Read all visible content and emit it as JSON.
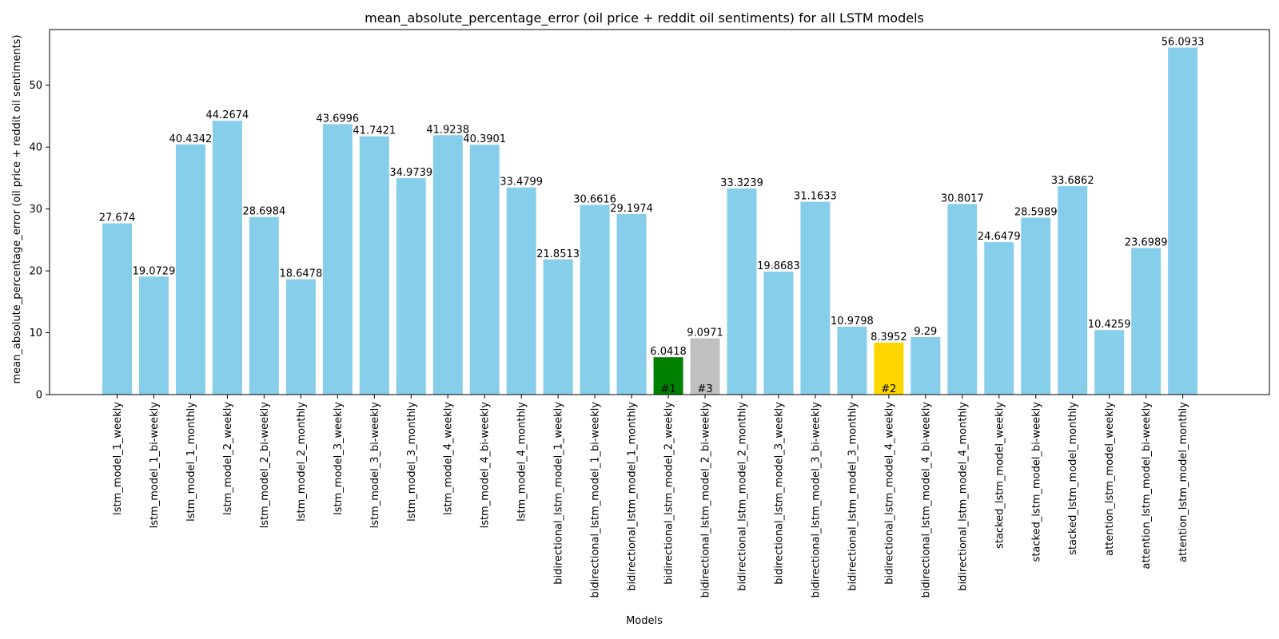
{
  "chart_data": {
    "type": "bar",
    "title": "mean_absolute_percentage_error (oil price + reddit oil sentiments) for all LSTM models",
    "xlabel": "Models",
    "ylabel": "mean_absolute_percentage_error (oil price + reddit oil sentiments)",
    "ylim": [
      0,
      59
    ],
    "yticks": [
      0,
      10,
      20,
      30,
      40,
      50
    ],
    "grid": false,
    "default_color": "#87CEEB",
    "categories": [
      "lstm_model_1_weekly",
      "lstm_model_1_bi-weekly",
      "lstm_model_1_monthly",
      "lstm_model_2_weekly",
      "lstm_model_2_bi-weekly",
      "lstm_model_2_monthly",
      "lstm_model_3_weekly",
      "lstm_model_3_bi-weekly",
      "lstm_model_3_monthly",
      "lstm_model_4_weekly",
      "lstm_model_4_bi-weekly",
      "lstm_model_4_monthly",
      "bidirectional_lstm_model_1_weekly",
      "bidirectional_lstm_model_1_bi-weekly",
      "bidirectional_lstm_model_1_monthly",
      "bidirectional_lstm_model_2_weekly",
      "bidirectional_lstm_model_2_bi-weekly",
      "bidirectional_lstm_model_2_monthly",
      "bidirectional_lstm_model_3_weekly",
      "bidirectional_lstm_model_3_bi-weekly",
      "bidirectional_lstm_model_3_monthly",
      "bidirectional_lstm_model_4_weekly",
      "bidirectional_lstm_model_4_bi-weekly",
      "bidirectional_lstm_model_4_monthly",
      "stacked_lstm_model_weekly",
      "stacked_lstm_model_bi-weekly",
      "stacked_lstm_model_monthly",
      "attention_lstm_model_weekly",
      "attention_lstm_model_bi-weekly",
      "attention_lstm_model_monthly"
    ],
    "values": [
      27.674,
      19.0729,
      40.4342,
      44.2674,
      28.6984,
      18.6478,
      43.6996,
      41.7421,
      34.9739,
      41.9238,
      40.3901,
      33.4799,
      21.8513,
      30.6616,
      29.1974,
      6.0418,
      9.0971,
      33.3239,
      19.8683,
      31.1633,
      10.9798,
      8.3952,
      9.29,
      30.8017,
      24.6479,
      28.5989,
      33.6862,
      10.4259,
      23.6989,
      56.0933
    ],
    "value_labels": [
      "27.674",
      "19.0729",
      "40.4342",
      "44.2674",
      "28.6984",
      "18.6478",
      "43.6996",
      "41.7421",
      "34.9739",
      "41.9238",
      "40.3901",
      "33.4799",
      "21.8513",
      "30.6616",
      "29.1974",
      "6.0418",
      "9.0971",
      "33.3239",
      "19.8683",
      "31.1633",
      "10.9798",
      "8.3952",
      "9.29",
      "30.8017",
      "24.6479",
      "28.5989",
      "33.6862",
      "10.4259",
      "23.6989",
      "56.0933"
    ],
    "highlights": [
      {
        "index": 15,
        "color": "#008000",
        "label": "#1"
      },
      {
        "index": 21,
        "color": "#FFD700",
        "label": "#2"
      },
      {
        "index": 16,
        "color": "#C0C0C0",
        "label": "#3"
      }
    ]
  }
}
